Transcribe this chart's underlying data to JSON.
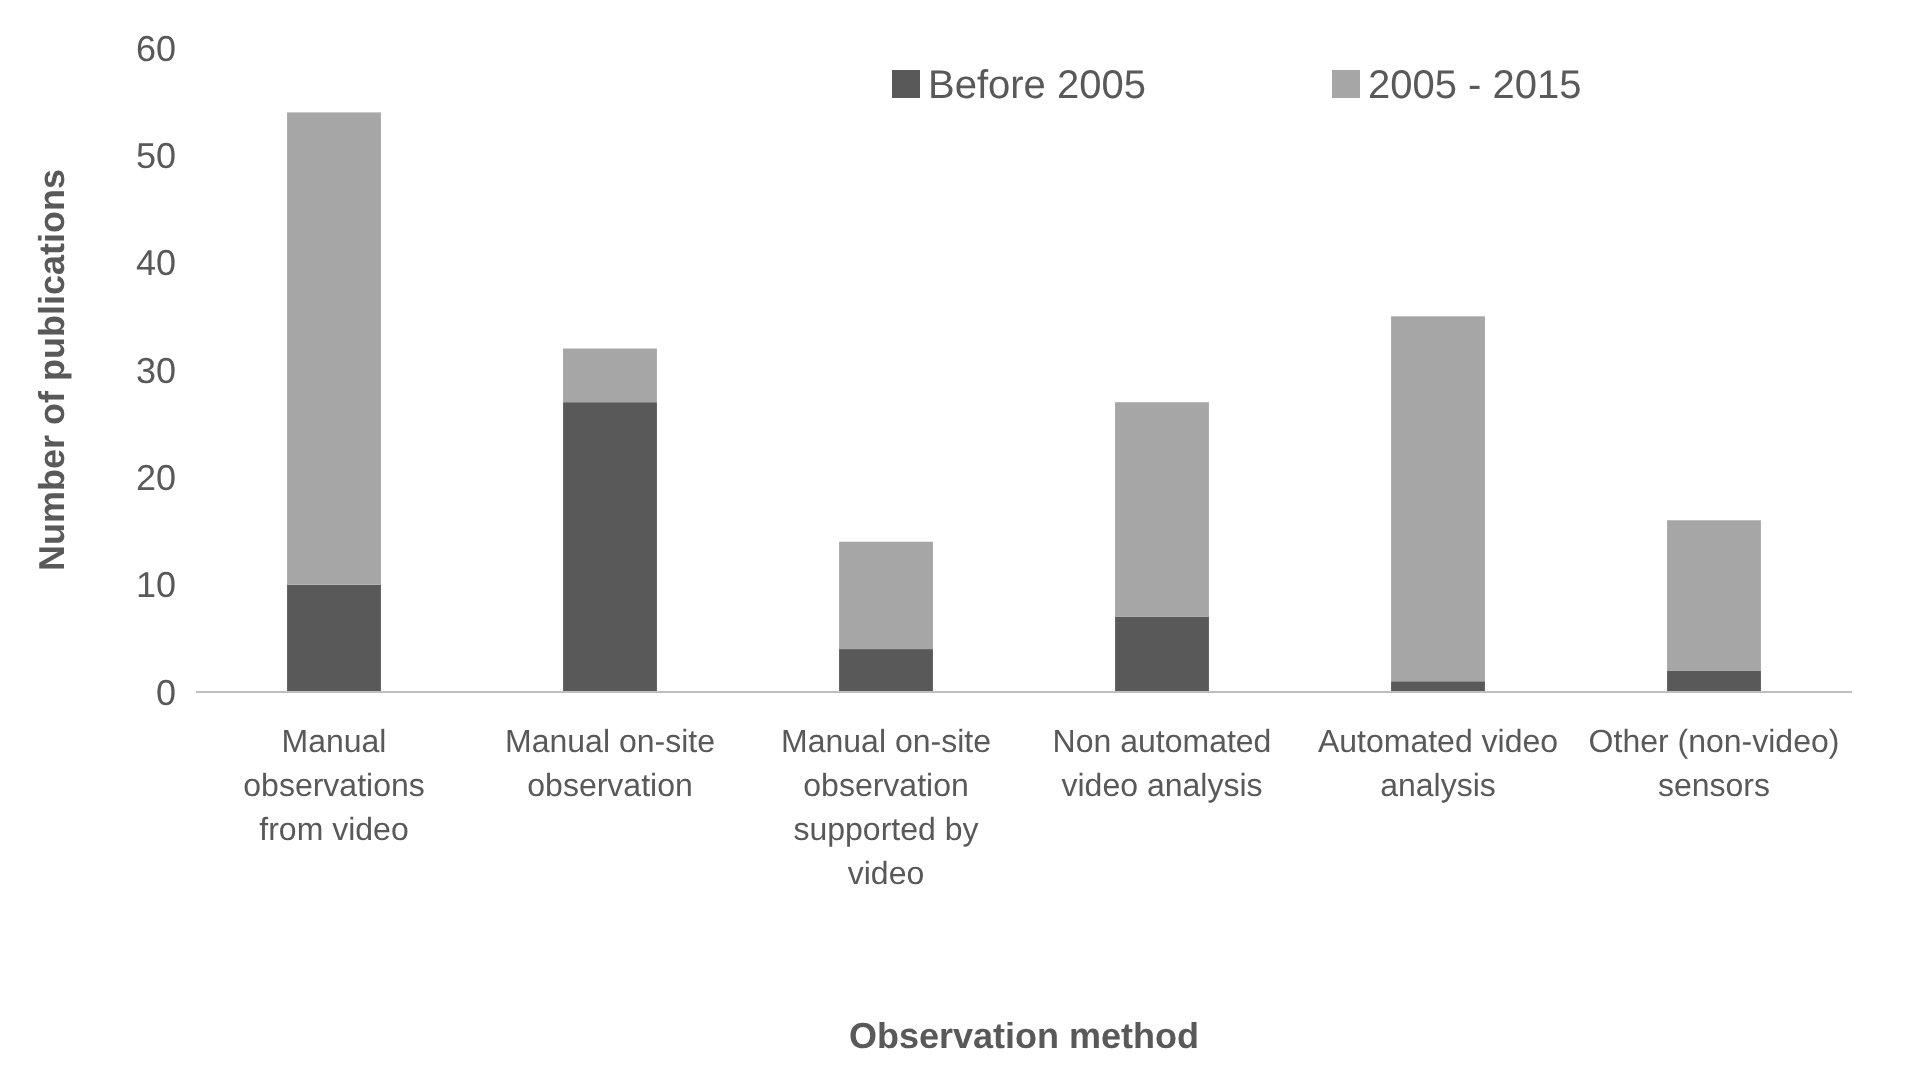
{
  "chart_data": {
    "type": "bar",
    "stacked": true,
    "xlabel": "Observation method",
    "ylabel": "Number of publications",
    "categories": [
      "Manual observations from video",
      "Manual on-site observation",
      "Manual on-site observation supported by video",
      "Non automated video analysis",
      "Automated video analysis",
      "Other (non-video) sensors"
    ],
    "series": [
      {
        "name": "Before 2005",
        "color": "#595959",
        "values": [
          10,
          27,
          4,
          7,
          1,
          2
        ]
      },
      {
        "name": "2005 - 2015",
        "color": "#a6a6a6",
        "values": [
          44,
          5,
          10,
          20,
          34,
          14
        ]
      }
    ],
    "ylim": [
      0,
      60
    ],
    "yticks": [
      0,
      10,
      20,
      30,
      40,
      50,
      60
    ],
    "grid": false,
    "legend": "top right"
  }
}
